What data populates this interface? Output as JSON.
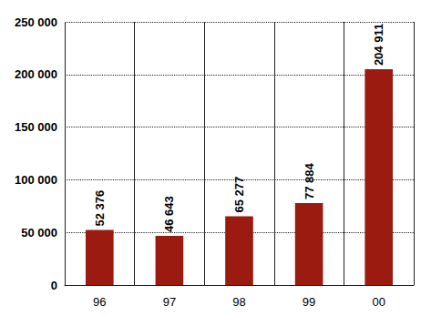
{
  "chart_data": {
    "type": "bar",
    "categories": [
      "96",
      "97",
      "98",
      "99",
      "00"
    ],
    "values": [
      52376,
      46643,
      65277,
      77884,
      204911
    ],
    "value_labels": [
      "52 376",
      "46 643",
      "65 277",
      "77 884",
      "204 911"
    ],
    "color": "#9b1b10",
    "ylim": [
      0,
      250000
    ],
    "yticks": [
      0,
      {
        "value": 50000,
        "label": "50 000"
      },
      {
        "value": 100000,
        "label": "100 000"
      },
      {
        "value": 150000,
        "label": "150 000"
      },
      {
        "value": 200000,
        "label": "200 000"
      },
      {
        "value": 250000,
        "label": "250 000"
      }
    ],
    "grid": true,
    "data_labels": true
  }
}
